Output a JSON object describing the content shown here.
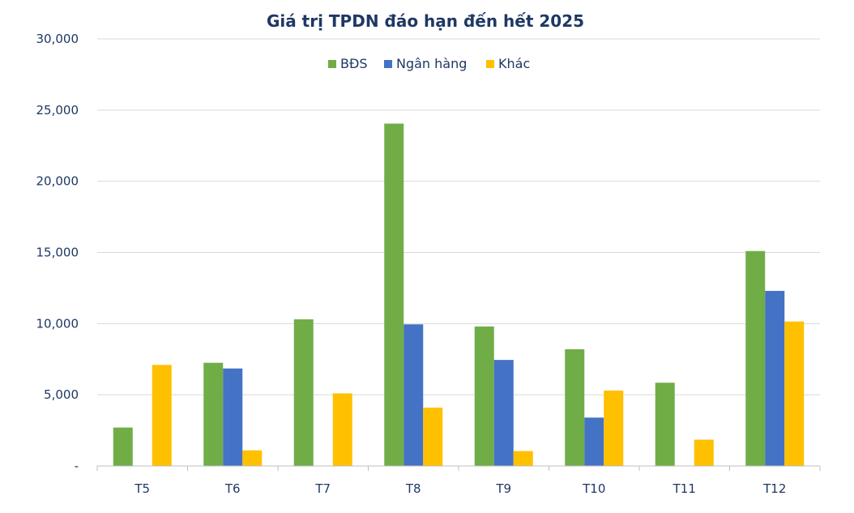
{
  "chart_data": {
    "type": "bar",
    "title": "Giá trị TPDN đáo hạn đến hết 2025",
    "xlabel": "",
    "ylabel": "",
    "categories": [
      "T5",
      "T6",
      "T7",
      "T8",
      "T9",
      "T10",
      "T11",
      "T12"
    ],
    "series": [
      {
        "name": "BĐS",
        "color": "#70ad47",
        "values": [
          2700,
          7250,
          10300,
          24050,
          9800,
          8200,
          5850,
          15100
        ]
      },
      {
        "name": "Ngân hàng",
        "color": "#4472c4",
        "values": [
          0,
          6850,
          0,
          9950,
          7450,
          3400,
          0,
          12300
        ]
      },
      {
        "name": "Khác",
        "color": "#ffc000",
        "values": [
          7100,
          1100,
          5100,
          4100,
          1050,
          5300,
          1850,
          10150
        ]
      }
    ],
    "ylim": [
      0,
      30000
    ],
    "yticks": [
      0,
      5000,
      10000,
      15000,
      20000,
      25000,
      30000
    ],
    "ytick_labels": [
      "-",
      "5,000",
      "10,000",
      "15,000",
      "20,000",
      "25,000",
      "30,000"
    ],
    "grid": true,
    "legend_position": "top-center"
  }
}
